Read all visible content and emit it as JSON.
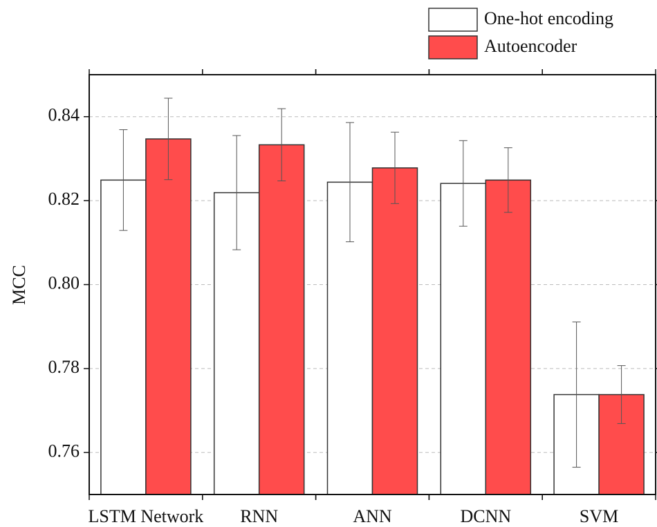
{
  "chart_data": {
    "type": "bar",
    "y_label": "MCC",
    "categories": [
      "LSTM Network",
      "RNN",
      "ANN",
      "DCNN",
      "SVM"
    ],
    "series": [
      {
        "name": "One-hot encoding",
        "color": "#ffffff",
        "values": [
          0.8249,
          0.8219,
          0.8244,
          0.8241,
          0.7738
        ],
        "errors": [
          0.012,
          0.0136,
          0.0142,
          0.0102,
          0.0173
        ]
      },
      {
        "name": "Autoencoder",
        "color": "#ff4c4c",
        "values": [
          0.8347,
          0.8333,
          0.8278,
          0.8249,
          0.7738
        ],
        "errors": [
          0.0097,
          0.0086,
          0.0085,
          0.0077,
          0.0069
        ]
      }
    ],
    "ylim": [
      0.75,
      0.85
    ],
    "yticks": [
      0.76,
      0.78,
      {
        "value": 0.8,
        "label": "0.80"
      },
      0.82,
      0.84
    ],
    "grid": true
  }
}
